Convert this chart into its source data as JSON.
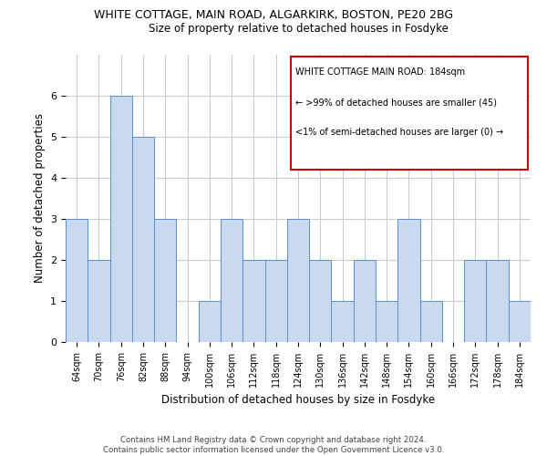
{
  "title": "WHITE COTTAGE, MAIN ROAD, ALGARKIRK, BOSTON, PE20 2BG",
  "subtitle": "Size of property relative to detached houses in Fosdyke",
  "xlabel": "Distribution of detached houses by size in Fosdyke",
  "ylabel": "Number of detached properties",
  "categories": [
    "64sqm",
    "70sqm",
    "76sqm",
    "82sqm",
    "88sqm",
    "94sqm",
    "100sqm",
    "106sqm",
    "112sqm",
    "118sqm",
    "124sqm",
    "130sqm",
    "136sqm",
    "142sqm",
    "148sqm",
    "154sqm",
    "160sqm",
    "166sqm",
    "172sqm",
    "178sqm",
    "184sqm"
  ],
  "values": [
    3,
    2,
    6,
    5,
    3,
    0,
    1,
    3,
    2,
    2,
    3,
    2,
    1,
    2,
    1,
    3,
    1,
    0,
    2,
    2,
    1
  ],
  "bar_color": "#c8d9f0",
  "bar_edgecolor": "#5b8fc9",
  "ylim": [
    0,
    7
  ],
  "yticks": [
    0,
    1,
    2,
    3,
    4,
    5,
    6
  ],
  "grid_color": "#cccccc",
  "annotation_title": "WHITE COTTAGE MAIN ROAD: 184sqm",
  "annotation_line1": "← >99% of detached houses are smaller (45)",
  "annotation_line2": "<1% of semi-detached houses are larger (0) →",
  "annotation_box_color": "#cc0000",
  "footer": "Contains HM Land Registry data © Crown copyright and database right 2024.\nContains public sector information licensed under the Open Government Licence v3.0.",
  "background_color": "#ffffff"
}
